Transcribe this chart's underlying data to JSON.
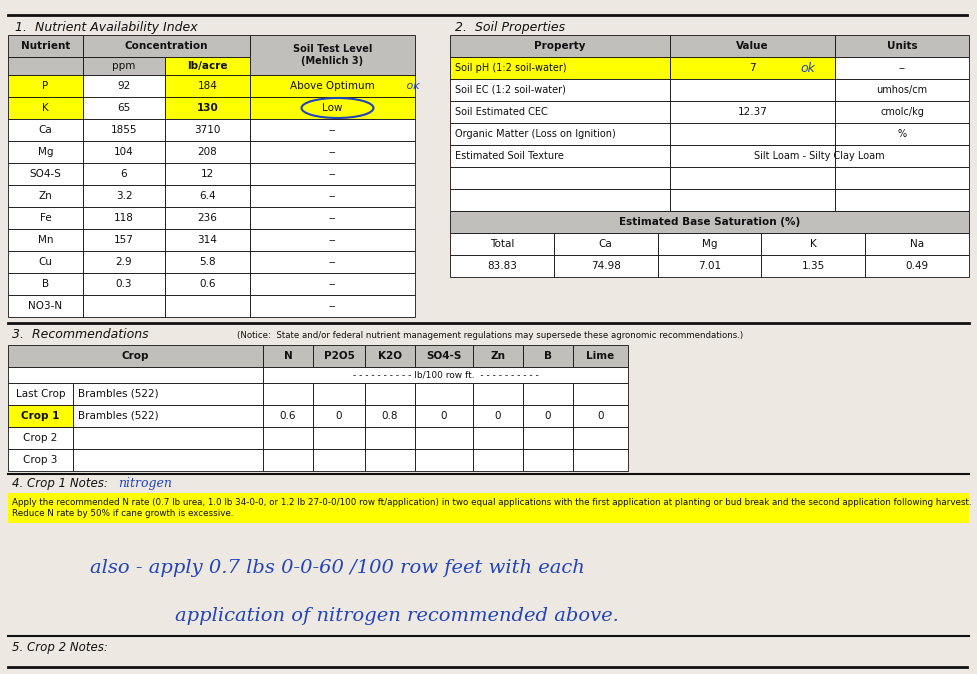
{
  "paper_color": "#ede9e2",
  "yellow": "#ffff00",
  "gray_header": "#c0bfbb",
  "white": "#ffffff",
  "black": "#111111",
  "blue_pen": "#2244bb",
  "section1_title": "1.  Nutrient Availability Index",
  "section2_title": "2.  Soil Properties",
  "section3_title": "3.  Recommendations",
  "notice_text": "(Notice:  State and/or federal nutrient management regulations may supersede these agronomic recommendations.)",
  "nutrients": [
    "P",
    "K",
    "Ca",
    "Mg",
    "SO4-S",
    "Zn",
    "Fe",
    "Mn",
    "Cu",
    "B",
    "NO3-N"
  ],
  "ppm": [
    "92",
    "65",
    "1855",
    "104",
    "6",
    "3.2",
    "118",
    "157",
    "2.9",
    "0.3",
    ""
  ],
  "lb_acre": [
    "184",
    "130",
    "3710",
    "208",
    "12",
    "6.4",
    "236",
    "314",
    "5.8",
    "0.6",
    ""
  ],
  "soil_test_level": [
    "Above Optimum",
    "Low",
    "--",
    "--",
    "--",
    "--",
    "--",
    "--",
    "--",
    "--",
    "--"
  ],
  "highlight_nutrients_idx": [
    0,
    1
  ],
  "highlight_lb_idx": [
    0,
    1
  ],
  "highlight_level_idx": [
    0,
    1
  ],
  "soil_props": [
    [
      "Soil pH (1:2 soil-water)",
      "7",
      "--"
    ],
    [
      "Soil EC (1:2 soil-water)",
      "",
      "umhos/cm"
    ],
    [
      "Soil Estimated CEC",
      "12.37",
      "cmolc/kg"
    ],
    [
      "Organic Matter (Loss on Ignition)",
      "",
      "%"
    ],
    [
      "Estimated Soil Texture",
      "Silt Loam - Silty Clay Loam",
      ""
    ]
  ],
  "base_sat_headers": [
    "Total",
    "Ca",
    "Mg",
    "K",
    "Na"
  ],
  "base_sat_values": [
    "83.83",
    "74.98",
    "7.01",
    "1.35",
    "0.49"
  ],
  "rec_data_rows": [
    [
      "Last Crop",
      "Brambles (522)",
      "",
      "",
      "",
      "",
      "",
      "",
      ""
    ],
    [
      "Crop 1",
      "Brambles (522)",
      "0.6",
      "0",
      "0.8",
      "0",
      "0",
      "0",
      "0"
    ],
    [
      "Crop 2",
      "",
      "",
      "",
      "",
      "",
      "",
      "",
      ""
    ],
    [
      "Crop 3",
      "",
      "",
      "",
      "",
      "",
      "",
      "",
      ""
    ]
  ],
  "highlight_crop1": "Crop 1",
  "notes4_label": "4. Crop 1 Notes:",
  "notes4_handwritten": "nitrogen",
  "notes4_body": "Apply the recommended N rate (0.7 lb urea, 1.0 lb 34-0-0, or 1.2 lb 27-0-0/100 row ft/application) in two equal applications with the first application at planting or bud break and the second application following harvest. Reduce N rate by 50% if cane growth is excessive.",
  "hw_line1": "also - apply 0.7 lbs 0-0-60 /100 row feet with each",
  "hw_line2": "application of nitrogen recommended above.",
  "notes5_label": "5. Crop 2 Notes:"
}
